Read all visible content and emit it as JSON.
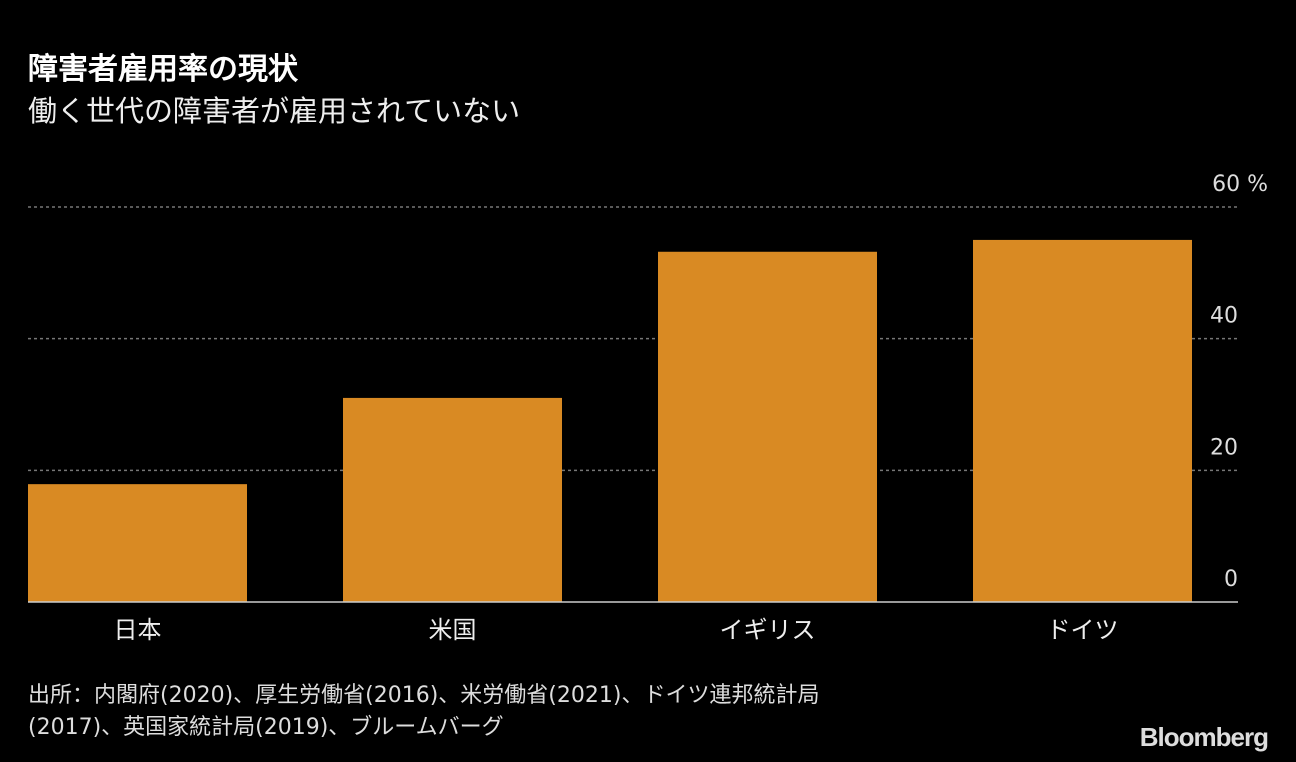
{
  "title": "障害者雇用率の現状",
  "subtitle": "働く世代の障害者が雇用されていない",
  "chart_data": {
    "type": "bar",
    "categories": [
      "日本",
      "米国",
      "イギリス",
      "ドイツ"
    ],
    "values": [
      17.9,
      31.0,
      53.2,
      55.0
    ],
    "ylim": [
      0,
      60
    ],
    "yticks": [
      0,
      20,
      40,
      60
    ],
    "yunit": "%",
    "grid": true,
    "bar_color": "#d98a23"
  },
  "source": {
    "line1": "出所：内閣府(2020)、厚生労働省(2016)、米労働省(2021)、ドイツ連邦統計局",
    "line2": "(2017)、英国家統計局(2019)、ブルームバーグ"
  },
  "logo": "Bloomberg"
}
